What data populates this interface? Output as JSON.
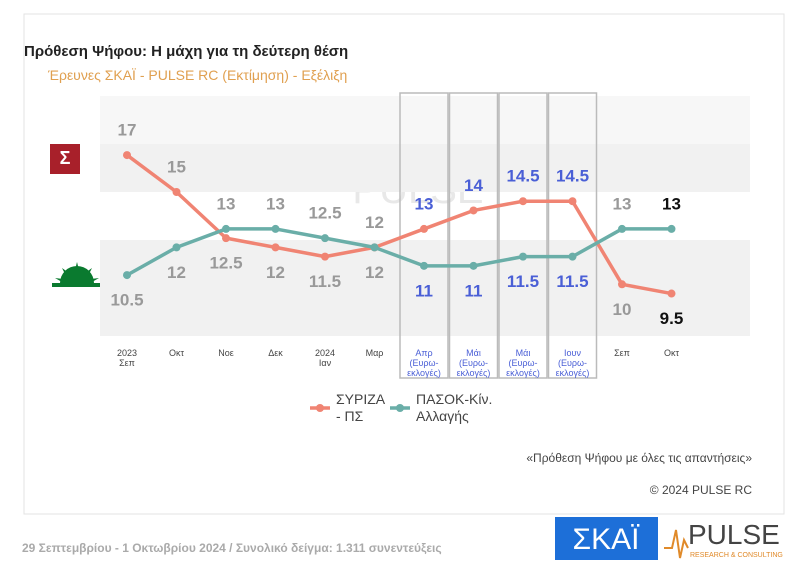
{
  "chart_data": {
    "type": "line",
    "title": "Πρόθεση Ψήφου: Η μάχη για τη δεύτερη θέση",
    "subtitle": "Έρευνες ΣΚΑΪ - PULSE RC   (Εκτίμηση) - Εξέλιξη",
    "categories": [
      "2023\nΣεπ",
      "Οκτ",
      "Νοε",
      "Δεκ",
      "2024\nΙαν",
      "Μαρ",
      "Απρ\n(Ευρω-\nεκλογές)",
      "Μάι\n(Ευρω-\nεκλογές)",
      "Μάι\n(Ευρω-\nεκλογές)",
      "Ιουν\n(Ευρω-\nεκλογές)",
      "Σεπ",
      "Οκτ"
    ],
    "series": [
      {
        "name": "ΣΥΡΙΖΑ\n- ΠΣ",
        "color": "#f08473",
        "values": [
          17,
          15,
          12.5,
          12,
          11.5,
          12,
          13,
          14,
          14.5,
          14.5,
          10,
          9.5
        ]
      },
      {
        "name": "ΠΑΣΟΚ-Κίν.\nΑλλαγής",
        "color": "#6aaea8",
        "values": [
          10.5,
          12,
          13,
          13,
          12.5,
          12,
          11,
          11,
          11.5,
          11.5,
          13,
          13
        ]
      }
    ],
    "ylim": [
      7.2,
      20.2
    ],
    "note": "«Πρόθεση Ψήφου με όλες τις απαντήσεις»",
    "copyright": "© 2024 PULSE RC",
    "footer": "29 Σεπτεμβρίου - 1 Οκτωβρίου 2024  /  Συνολικό δείγμα:  1.311 συνεντεύξεις",
    "logos": {
      "skai": "ΣΚΑΪ",
      "pulse": "PULSE",
      "pulse_sub": "RESEARCH & CONSULTING"
    }
  }
}
